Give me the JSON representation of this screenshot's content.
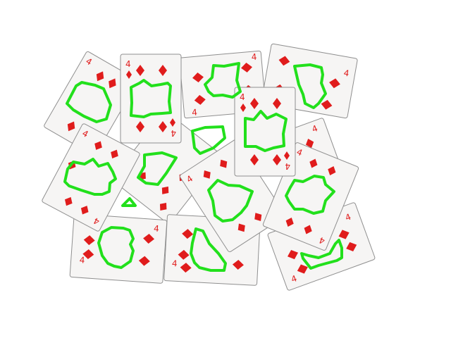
{
  "scene": {
    "background": "#ffffff",
    "card_face_color": "#f6f5f4",
    "card_edge_color": "#8f8f8f",
    "suit_color": "#e01c1c",
    "outline_color": "#22e01c"
  },
  "cards": [
    {
      "rank": "4",
      "suit": "diamonds"
    },
    {
      "rank": "4",
      "suit": "diamonds"
    },
    {
      "rank": "4",
      "suit": "diamonds"
    },
    {
      "rank": "4",
      "suit": "diamonds"
    },
    {
      "rank": "4",
      "suit": "diamonds"
    },
    {
      "rank": "4",
      "suit": "diamonds"
    },
    {
      "rank": "4",
      "suit": "diamonds"
    },
    {
      "rank": "4",
      "suit": "diamonds"
    },
    {
      "rank": "4",
      "suit": "diamonds"
    },
    {
      "rank": "4",
      "suit": "diamonds"
    },
    {
      "rank": "4",
      "suit": "diamonds"
    },
    {
      "rank": "4",
      "suit": "diamonds"
    },
    {
      "rank": "4",
      "suit": "diamonds"
    }
  ]
}
